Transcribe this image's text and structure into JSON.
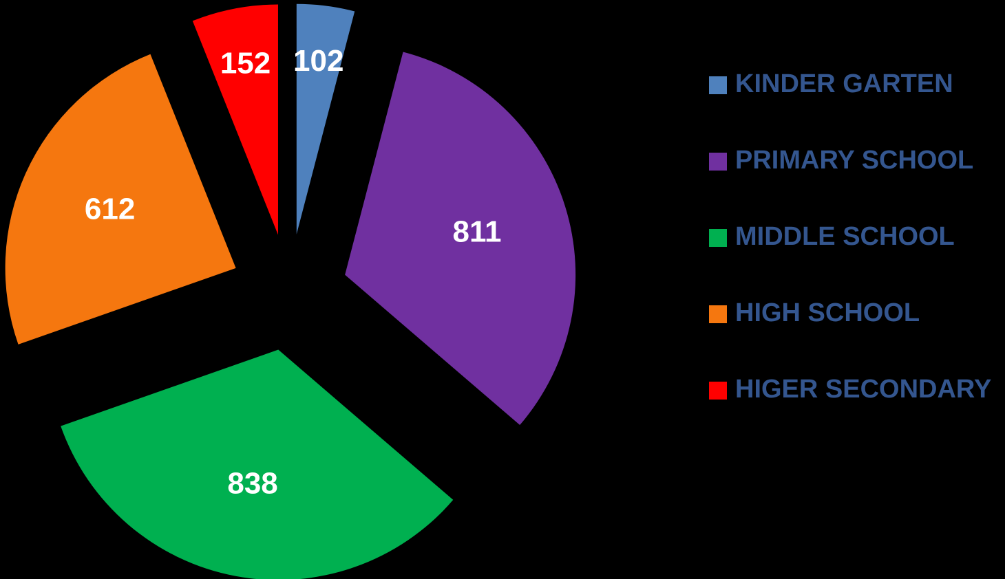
{
  "chart_data": {
    "type": "pie",
    "categories": [
      "KINDER GARTEN",
      "PRIMARY SCHOOL",
      "MIDDLE SCHOOL",
      "HIGH SCHOOL",
      "HIGER SECONDARY"
    ],
    "values": [
      102,
      811,
      838,
      612,
      152
    ],
    "colors": [
      "#4f81bd",
      "#7030a0",
      "#00b050",
      "#f5770f",
      "#ff0000"
    ],
    "legend": "right"
  }
}
